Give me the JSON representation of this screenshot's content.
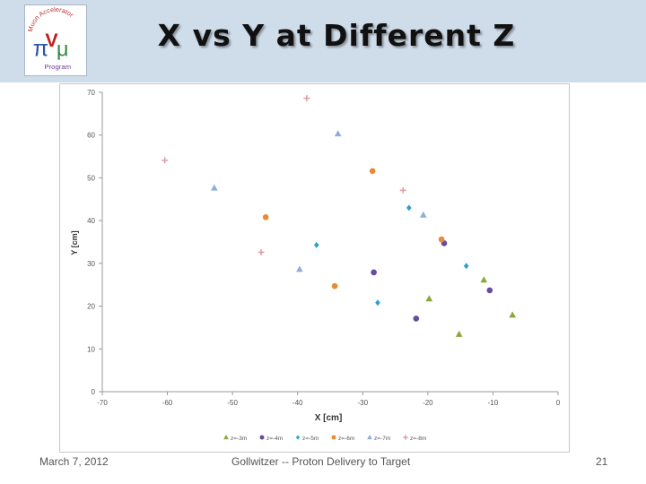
{
  "slide": {
    "title": "X vs Y at Different Z",
    "logo_text": "Muon Accelerator Program",
    "footer_date": "March 7, 2012",
    "footer_center": "Gollwitzer -- Proton Delivery to Target",
    "page_number": "21"
  },
  "chart_data": {
    "type": "scatter",
    "title": "",
    "xlabel": "X [cm]",
    "ylabel": "Y [cm]",
    "xlim": [
      -70,
      0
    ],
    "ylim": [
      0,
      70
    ],
    "xticks": [
      -70,
      -60,
      -50,
      -40,
      -30,
      -20,
      -10,
      0
    ],
    "yticks": [
      0,
      10,
      20,
      30,
      40,
      50,
      60,
      70
    ],
    "grid": false,
    "legend_position": "bottom",
    "series": [
      {
        "name": "z=-3m",
        "marker": "triangle",
        "color": "#8aa83a",
        "x": [
          -19.8,
          -15.2,
          -11.4,
          -7.0
        ],
        "y": [
          21.7,
          13.4,
          26.1,
          17.9
        ]
      },
      {
        "name": "z=-4m",
        "marker": "circle",
        "color": "#6a4c9c",
        "x": [
          -28.3,
          -21.8,
          -17.5,
          -10.5
        ],
        "y": [
          27.9,
          17.1,
          34.7,
          23.7
        ]
      },
      {
        "name": "z=-5m",
        "marker": "diamond",
        "color": "#2e9fd0",
        "x": [
          -37.1,
          -27.7,
          -22.9,
          -14.1
        ],
        "y": [
          34.3,
          20.8,
          43.0,
          29.4
        ]
      },
      {
        "name": "z=-6m",
        "marker": "circle",
        "color": "#e88a36",
        "x": [
          -44.9,
          -34.3,
          -28.5,
          -17.9
        ],
        "y": [
          40.8,
          24.7,
          51.6,
          35.6
        ]
      },
      {
        "name": "z=-7m",
        "marker": "triangle",
        "color": "#8fb0d6",
        "x": [
          -52.8,
          -39.7,
          -33.8,
          -20.7
        ],
        "y": [
          47.6,
          28.6,
          60.3,
          41.3
        ]
      },
      {
        "name": "z=-8m",
        "marker": "plus",
        "color": "#e0a0a8",
        "x": [
          -60.4,
          -45.6,
          -38.6,
          -23.8
        ],
        "y": [
          54.1,
          32.6,
          68.6,
          47.1
        ]
      }
    ]
  }
}
